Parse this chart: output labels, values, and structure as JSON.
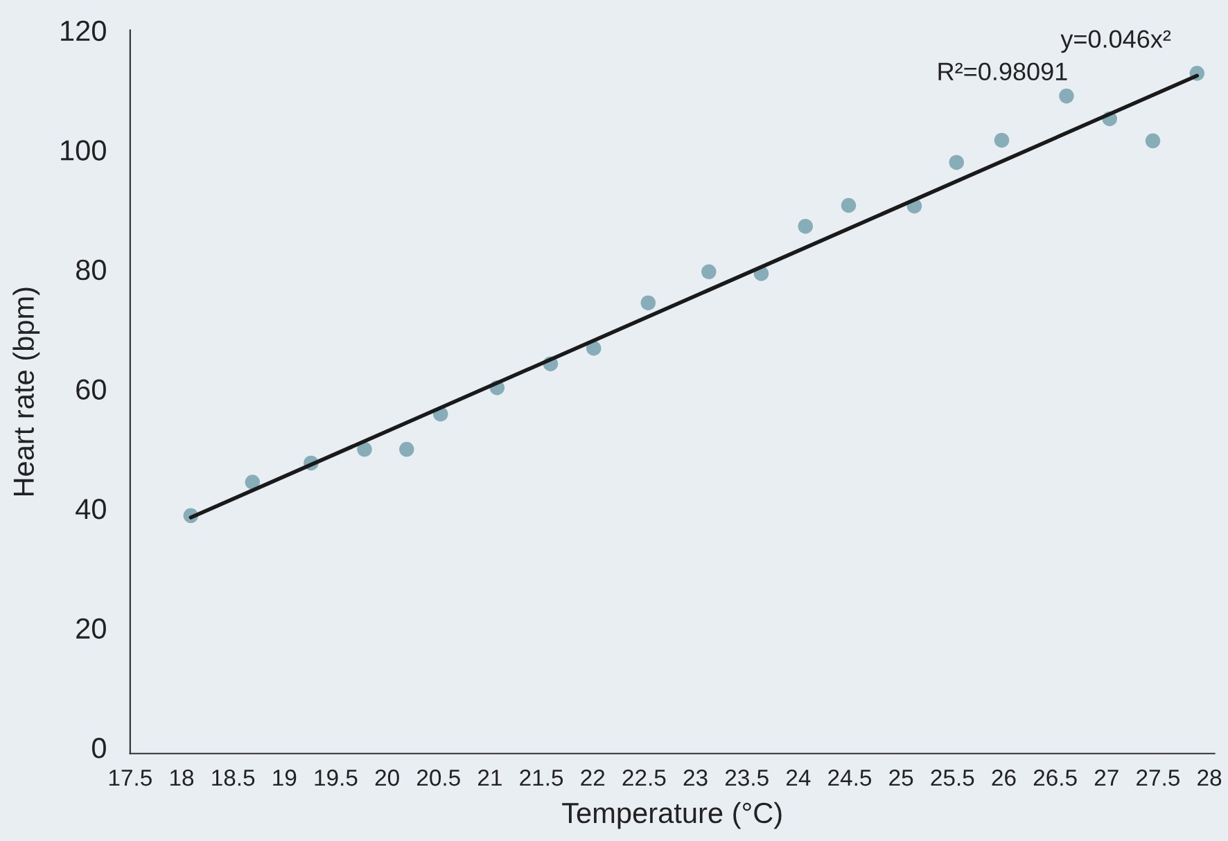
{
  "chart_data": {
    "type": "scatter",
    "xlabel": "Temperature (°C)",
    "ylabel": "Heart rate (bpm)",
    "annotations": [
      "y=0.046x²",
      "R²=0.98091"
    ],
    "series": [
      {
        "color": "#87aeb8",
        "marker": "circle",
        "x": [
          18.09,
          18.69,
          19.26,
          19.78,
          20.19,
          20.52,
          21.07,
          21.59,
          22.01,
          22.54,
          23.13,
          23.64,
          24.07,
          24.49,
          25.13,
          25.54,
          25.98,
          26.61,
          27.03,
          27.45,
          27.88
        ],
        "values": [
          38.8,
          44.4,
          47.6,
          49.9,
          49.9,
          55.8,
          60.2,
          64.2,
          66.8,
          74.4,
          79.6,
          79.3,
          87.2,
          90.7,
          90.6,
          97.9,
          101.6,
          109.0,
          105.2,
          101.5,
          112.8
        ]
      },
      {
        "type": "line",
        "color": "#1a1a1a",
        "x": [
          18.09,
          27.88
        ],
        "values": [
          38.5,
          112.4
        ]
      }
    ],
    "xlim": [
      17.5,
      28.05
    ],
    "ylim": [
      -1,
      120
    ],
    "xticks": [
      17.5,
      18,
      18.5,
      19,
      19.5,
      20,
      20.5,
      21,
      21.5,
      22,
      22.5,
      23,
      23.5,
      24,
      24.5,
      25,
      25.5,
      26,
      26.5,
      27,
      27.5,
      28
    ],
    "yticks": [
      0,
      20,
      40,
      60,
      80,
      100,
      120
    ],
    "grid": false,
    "legend": false
  }
}
